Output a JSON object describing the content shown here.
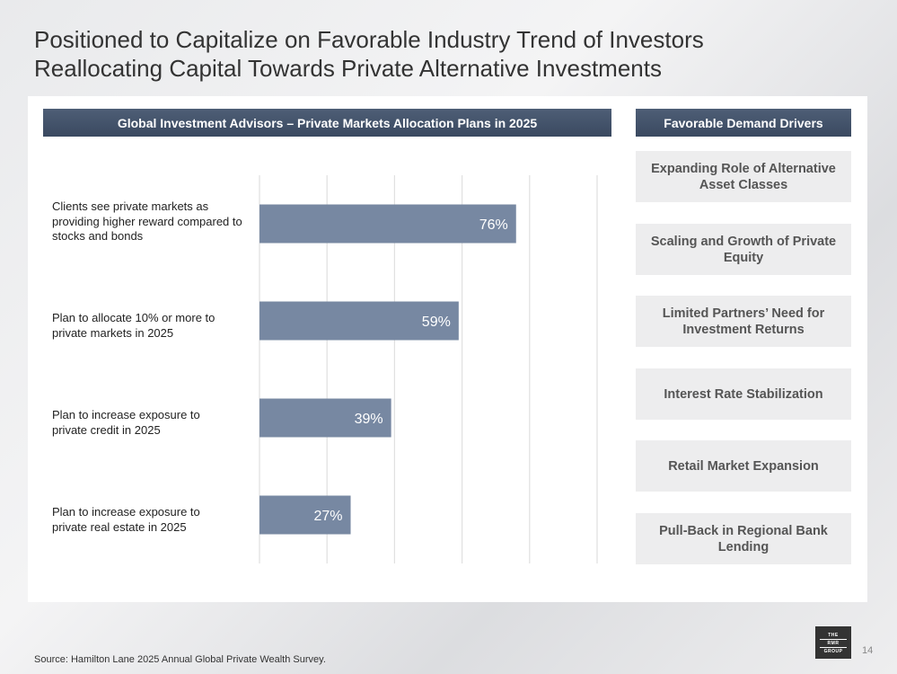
{
  "title_line1": "Positioned to Capitalize on Favorable Industry Trend of Investors",
  "title_line2": "Reallocating Capital Towards Private Alternative Investments",
  "chart_header": "Global Investment Advisors – Private Markets Allocation Plans in 2025",
  "drivers_header": "Favorable Demand Drivers",
  "drivers": [
    "Expanding Role of Alternative Asset Classes",
    "Scaling and Growth of Private Equity",
    "Limited Partners’ Need for Investment Returns",
    "Interest Rate Stabilization",
    "Retail Market Expansion",
    "Pull-Back in Regional Bank Lending"
  ],
  "chart_data": {
    "type": "bar",
    "orientation": "horizontal",
    "categories": [
      "Clients see private markets as providing higher reward compared to stocks and bonds",
      "Plan to allocate 10% or more to private markets in 2025",
      "Plan to increase exposure to private credit in 2025",
      "Plan to increase exposure to private real estate in 2025"
    ],
    "values": [
      76,
      59,
      39,
      27
    ],
    "labels": [
      "76%",
      "59%",
      "39%",
      "27%"
    ],
    "xlim": [
      0,
      100
    ],
    "grid": true,
    "bar_color": "#7788a2"
  },
  "source": "Source:  Hamilton Lane 2025 Annual Global Private Wealth Survey.",
  "logo": [
    "THE",
    "RMR",
    "GROUP"
  ],
  "page_number": "14"
}
